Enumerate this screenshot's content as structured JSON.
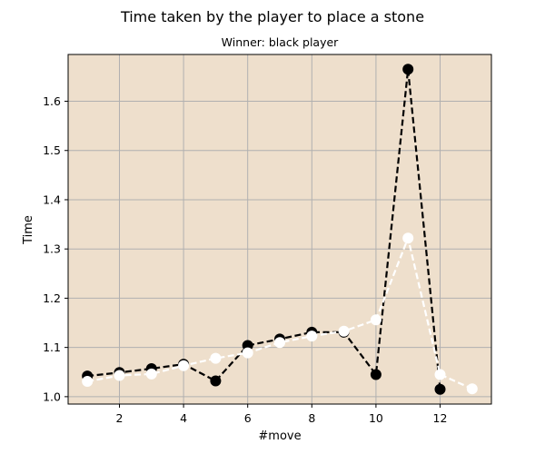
{
  "chart_data": {
    "type": "line",
    "title": "Time taken by the player to place a stone",
    "subtitle": "Winner: black player",
    "xlabel": "#move",
    "ylabel": "Time",
    "xlim": [
      0.4,
      13.6
    ],
    "ylim": [
      0.985,
      1.695
    ],
    "xticks": [
      2,
      4,
      6,
      8,
      10,
      12
    ],
    "yticks": [
      1.0,
      1.1,
      1.2,
      1.3,
      1.4,
      1.5,
      1.6
    ],
    "grid": true,
    "plot_background": "#eedfcc",
    "series": [
      {
        "color": "#000000",
        "marker_color": "#000000",
        "line_style": "dashed",
        "x": [
          1,
          2,
          3,
          4,
          5,
          6,
          7,
          8,
          9,
          10,
          11,
          12
        ],
        "y": [
          1.042,
          1.049,
          1.057,
          1.066,
          1.032,
          1.104,
          1.117,
          1.131,
          1.131,
          1.045,
          1.665,
          1.015
        ]
      },
      {
        "color": "#ffffff",
        "marker_color": "#ffffff",
        "line_style": "dashed",
        "x": [
          1,
          2,
          3,
          4,
          5,
          6,
          7,
          8,
          9,
          10,
          11,
          12,
          13
        ],
        "y": [
          1.031,
          1.043,
          1.046,
          1.063,
          1.078,
          1.089,
          1.11,
          1.123,
          1.133,
          1.156,
          1.322,
          1.045,
          1.016
        ]
      }
    ]
  }
}
